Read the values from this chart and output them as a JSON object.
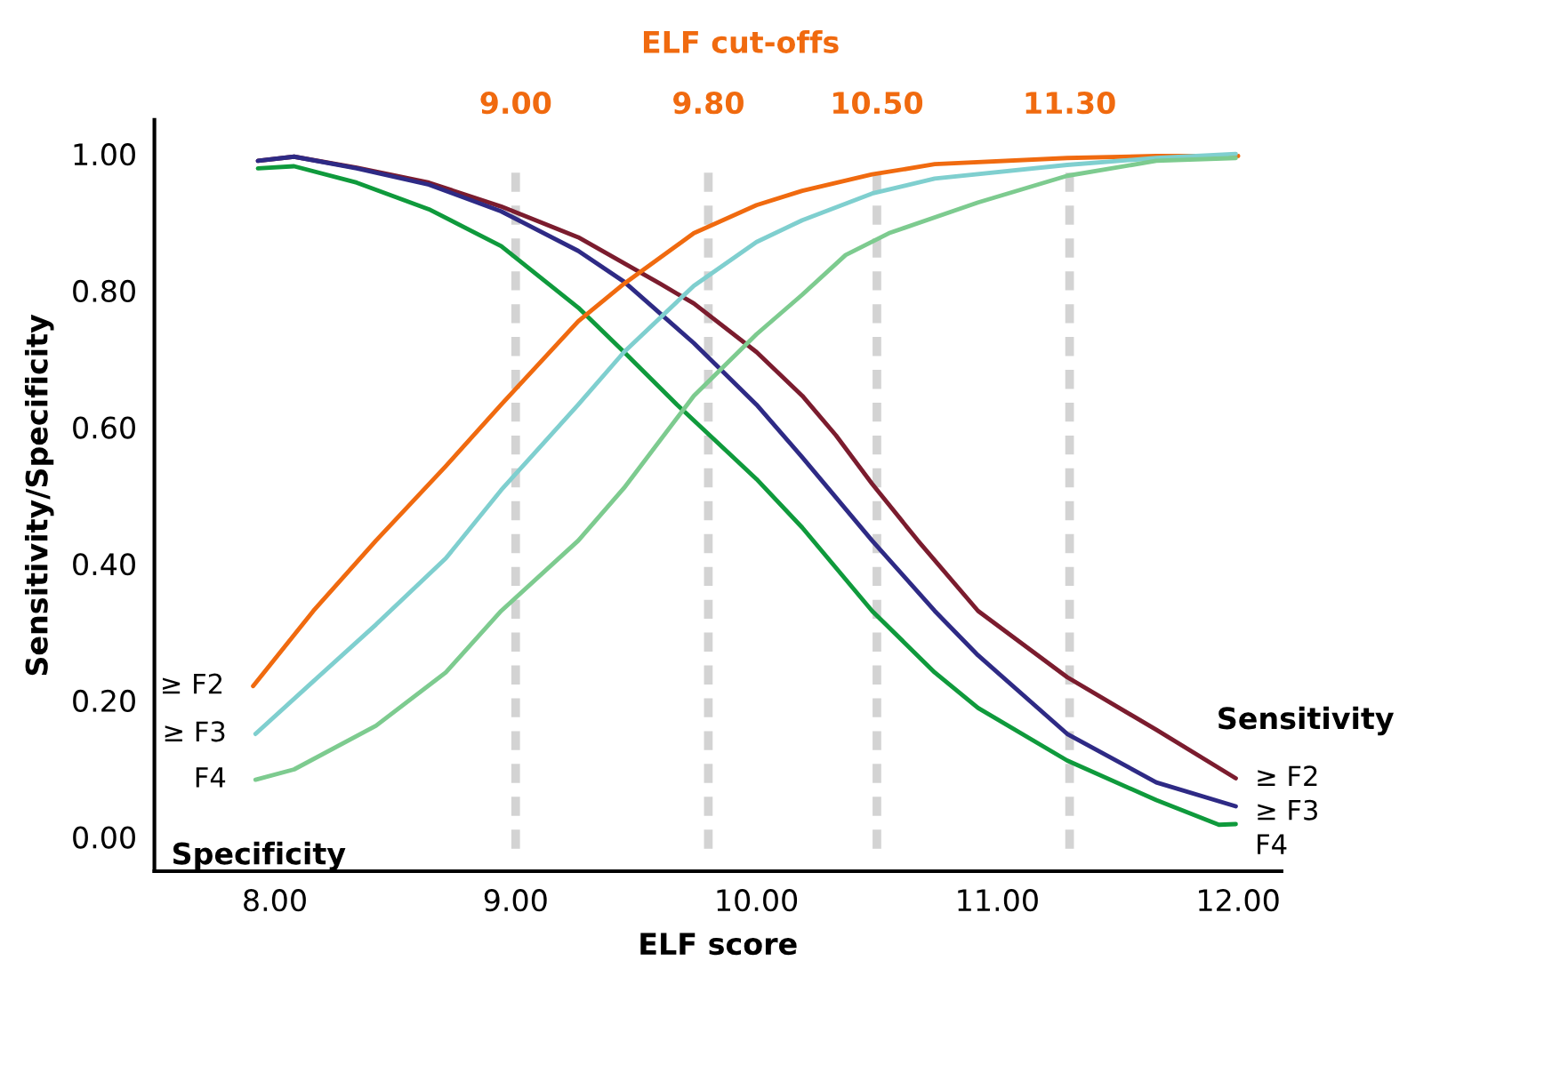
{
  "chart_data": {
    "type": "line",
    "xlabel": "ELF score",
    "ylabel": "Sensitivity/Specificity",
    "xlim": [
      7.5,
      12.18
    ],
    "ylim": [
      -0.05,
      1.05
    ],
    "xticks": [
      {
        "value": 8,
        "label": "8.00"
      },
      {
        "value": 9,
        "label": "9.00"
      },
      {
        "value": 10,
        "label": "10.00"
      },
      {
        "value": 11,
        "label": "11.00"
      },
      {
        "value": 12,
        "label": "12.00"
      }
    ],
    "yticks": [
      {
        "value": 0,
        "label": "0.00"
      },
      {
        "value": 0.2,
        "label": "0.20"
      },
      {
        "value": 0.4,
        "label": "0.40"
      },
      {
        "value": 0.6,
        "label": "0.60"
      },
      {
        "value": 0.8,
        "label": "0.80"
      },
      {
        "value": 1,
        "label": "1.00"
      }
    ],
    "grid": false,
    "legend": false,
    "marker": "none",
    "line_style": "solid",
    "annotations": [
      "ELF cut-offs",
      "Specificity",
      "Sensitivity"
    ],
    "ref_lines": [
      {
        "axis": "x",
        "value": 9.0,
        "label": "9.00",
        "color": "#d3d3d3",
        "line_style": "dashed"
      },
      {
        "axis": "x",
        "value": 9.8,
        "label": "9.80",
        "color": "#d3d3d3",
        "line_style": "dashed"
      },
      {
        "axis": "x",
        "value": 10.5,
        "label": "10.50",
        "color": "#d3d3d3",
        "line_style": "dashed"
      },
      {
        "axis": "x",
        "value": 11.3,
        "label": "11.30",
        "color": "#d3d3d3",
        "line_style": "dashed"
      }
    ],
    "series": [
      {
        "name": "≥ F2",
        "color": "#7b1c2e",
        "x": [
          7.93,
          8.08,
          8.34,
          8.64,
          8.94,
          9.26,
          9.6,
          9.74,
          10.0,
          10.19,
          10.33,
          10.48,
          10.67,
          10.92,
          11.29,
          11.66,
          11.99
        ],
        "values": [
          0.99,
          0.996,
          0.98,
          0.958,
          0.923,
          0.878,
          0.81,
          0.781,
          0.71,
          0.646,
          0.588,
          0.517,
          0.434,
          0.331,
          0.234,
          0.157,
          0.086
        ]
      },
      {
        "name": "≥ F3",
        "color": "#2e2a85",
        "x": [
          7.93,
          8.08,
          8.34,
          8.64,
          8.94,
          9.26,
          9.45,
          9.74,
          10.0,
          10.19,
          10.48,
          10.74,
          10.92,
          11.29,
          11.66,
          11.99
        ],
        "values": [
          0.99,
          0.996,
          0.979,
          0.955,
          0.916,
          0.858,
          0.813,
          0.723,
          0.633,
          0.556,
          0.434,
          0.331,
          0.266,
          0.151,
          0.08,
          0.045
        ]
      },
      {
        "name": "F4",
        "color": "#0f9a3c",
        "x": [
          7.93,
          8.08,
          8.34,
          8.64,
          8.94,
          9.26,
          9.45,
          9.67,
          10.0,
          10.19,
          10.48,
          10.74,
          10.92,
          11.29,
          11.66,
          11.92,
          11.99
        ],
        "values": [
          0.979,
          0.982,
          0.958,
          0.919,
          0.865,
          0.775,
          0.71,
          0.633,
          0.524,
          0.453,
          0.331,
          0.241,
          0.189,
          0.112,
          0.054,
          0.018,
          0.019
        ]
      },
      {
        "name": "≥ F2",
        "color": "#f06a0f",
        "x": [
          7.91,
          8.16,
          8.42,
          8.71,
          8.94,
          9.26,
          9.45,
          9.74,
          10.0,
          10.19,
          10.48,
          10.74,
          11.29,
          11.66,
          12.0
        ],
        "values": [
          0.221,
          0.331,
          0.434,
          0.543,
          0.633,
          0.755,
          0.81,
          0.884,
          0.925,
          0.946,
          0.97,
          0.985,
          0.994,
          0.997,
          0.997
        ]
      },
      {
        "name": "≥ F3",
        "color": "#7fcfcf",
        "x": [
          7.92,
          8.16,
          8.42,
          8.71,
          8.94,
          9.26,
          9.45,
          9.74,
          10.0,
          10.19,
          10.48,
          10.74,
          11.29,
          11.66,
          11.99
        ],
        "values": [
          0.151,
          0.228,
          0.311,
          0.408,
          0.508,
          0.633,
          0.71,
          0.807,
          0.871,
          0.903,
          0.942,
          0.964,
          0.984,
          0.994,
          1.0
        ]
      },
      {
        "name": "F4",
        "color": "#7dcb8f",
        "x": [
          7.92,
          8.08,
          8.42,
          8.71,
          8.94,
          9.26,
          9.45,
          9.74,
          10.0,
          10.19,
          10.37,
          10.55,
          10.92,
          11.29,
          11.66,
          11.99
        ],
        "values": [
          0.084,
          0.099,
          0.163,
          0.241,
          0.331,
          0.434,
          0.511,
          0.646,
          0.736,
          0.794,
          0.852,
          0.884,
          0.929,
          0.968,
          0.99,
          0.994
        ]
      }
    ]
  }
}
